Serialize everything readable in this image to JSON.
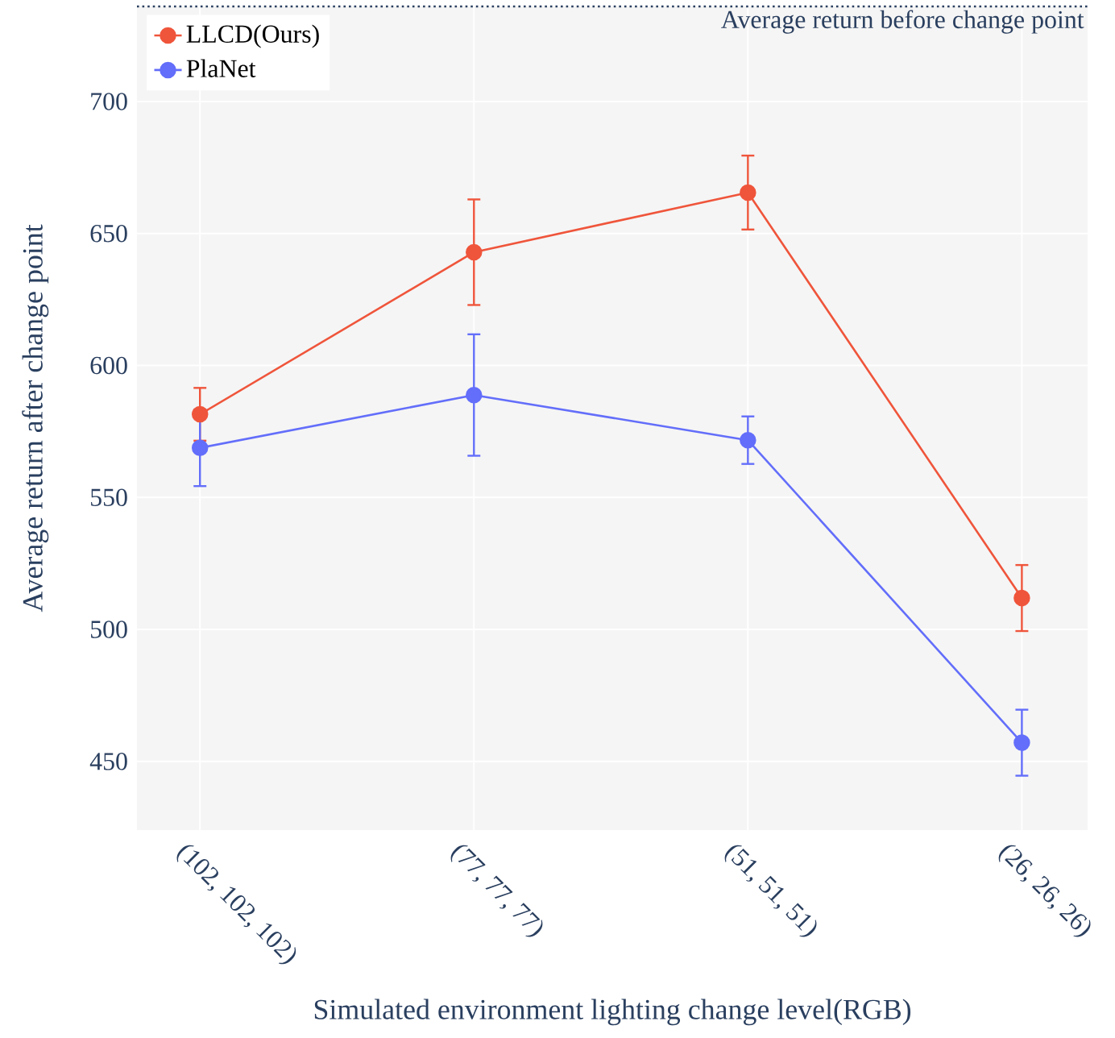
{
  "chart_data": {
    "type": "line",
    "xlabel": "Simulated environment lighting change level(RGB)",
    "ylabel": "Average return after change point",
    "categories": [
      "(102, 102, 102)",
      "(77, 77, 77)",
      "(51, 51, 51)",
      "(26, 26, 26)"
    ],
    "series": [
      {
        "name": "LLCD(Ours)",
        "color": "#ef553b",
        "values": [
          581.5,
          642.9,
          665.5,
          511.9
        ],
        "errors": [
          10,
          20,
          14,
          12.5
        ]
      },
      {
        "name": "PlaNet",
        "color": "#636efa",
        "values": [
          568.8,
          588.8,
          571.7,
          457.1
        ],
        "errors": [
          14.5,
          23,
          9,
          12.5
        ]
      }
    ],
    "ylim": [
      424,
      736
    ],
    "yticks": [
      450,
      500,
      550,
      600,
      650,
      700
    ],
    "ref_lines": [
      {
        "axis": "y",
        "value": 736,
        "label": "Average return before change point",
        "line_style": "dotted",
        "color": "#2a3f5f"
      }
    ],
    "grid": true,
    "legend": "top left",
    "marker": "circle",
    "line_style": "solid"
  }
}
